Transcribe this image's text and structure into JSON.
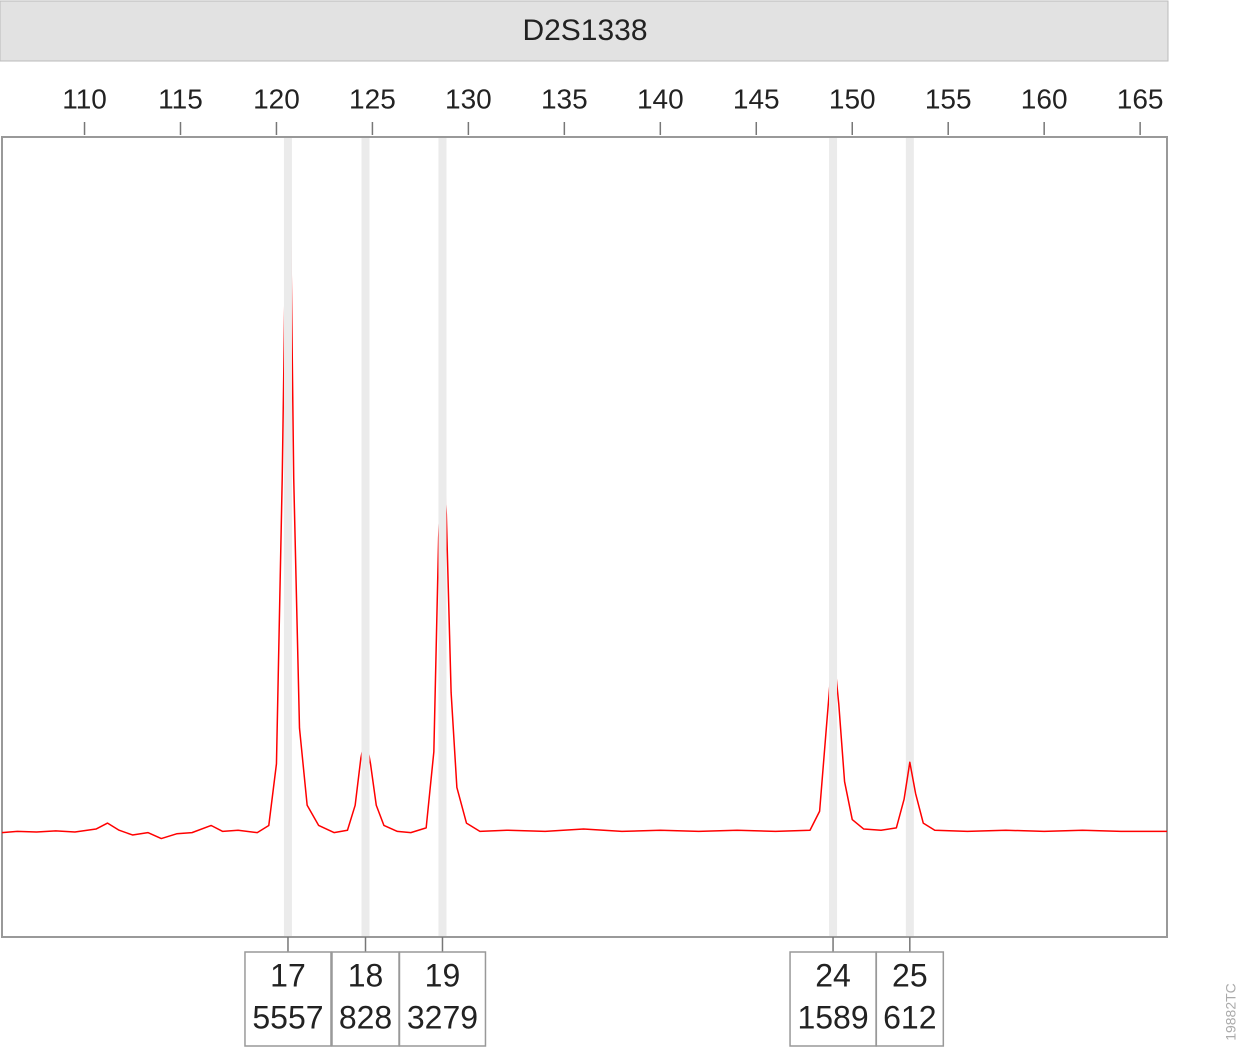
{
  "chart_data": {
    "type": "line",
    "title": "D2S1338",
    "color": "#ff0000",
    "xlim": [
      105.7,
      166.4
    ],
    "xticks": [
      110,
      115,
      120,
      125,
      130,
      135,
      140,
      145,
      150,
      155,
      160,
      165
    ],
    "ylim": [
      -859,
      5877
    ],
    "x": [
      105.7,
      106.5,
      107.5,
      108.5,
      109.5,
      110.6,
      111.2,
      111.8,
      112.5,
      113.3,
      114,
      114.8,
      115.6,
      116.6,
      117.2,
      118,
      119,
      119.6,
      120,
      120.3,
      120.5,
      120.6,
      120.75,
      120.9,
      121.2,
      121.6,
      122.2,
      123,
      123.7,
      124.1,
      124.4,
      124.64,
      124.9,
      125.2,
      125.6,
      126.3,
      127,
      127.8,
      128.2,
      128.45,
      128.65,
      128.85,
      129.1,
      129.4,
      129.9,
      130.6,
      132,
      134,
      136,
      138,
      140,
      142,
      144,
      146,
      147.8,
      148.3,
      148.65,
      149.0,
      149.3,
      149.6,
      150,
      150.6,
      151.5,
      152.3,
      152.7,
      153.0,
      153.3,
      153.7,
      154.3,
      156,
      158,
      160,
      162,
      164,
      166.4
    ],
    "values": [
      20,
      30,
      25,
      35,
      25,
      50,
      100,
      40,
      0,
      20,
      -30,
      10,
      20,
      80,
      30,
      40,
      20,
      80,
      600,
      3000,
      5200,
      5557,
      5000,
      3000,
      900,
      250,
      80,
      20,
      40,
      250,
      650,
      828,
      600,
      250,
      80,
      30,
      20,
      60,
      700,
      2500,
      3279,
      2700,
      1200,
      400,
      100,
      30,
      40,
      30,
      50,
      30,
      40,
      30,
      40,
      30,
      40,
      200,
      900,
      1589,
      1100,
      450,
      130,
      50,
      40,
      60,
      300,
      612,
      350,
      100,
      40,
      30,
      40,
      30,
      40,
      30,
      30
    ],
    "alleles": [
      {
        "label": "17",
        "size": 120.6,
        "height": 5557
      },
      {
        "label": "18",
        "size": 124.64,
        "height": 828
      },
      {
        "label": "19",
        "size": 128.65,
        "height": 3279
      },
      {
        "label": "24",
        "size": 149.0,
        "height": 1589
      },
      {
        "label": "25",
        "size": 153.0,
        "height": 612
      }
    ],
    "figure_id": "19882TC"
  }
}
